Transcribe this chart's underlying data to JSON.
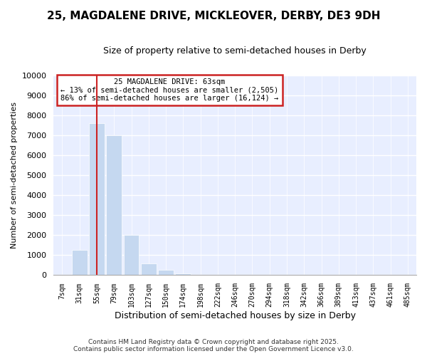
{
  "title_line1": "25, MAGDALENE DRIVE, MICKLEOVER, DERBY, DE3 9DH",
  "title_line2": "Size of property relative to semi-detached houses in Derby",
  "xlabel": "Distribution of semi-detached houses by size in Derby",
  "ylabel": "Number of semi-detached properties",
  "categories": [
    "7sqm",
    "31sqm",
    "55sqm",
    "79sqm",
    "103sqm",
    "127sqm",
    "150sqm",
    "174sqm",
    "198sqm",
    "222sqm",
    "246sqm",
    "270sqm",
    "294sqm",
    "318sqm",
    "342sqm",
    "366sqm",
    "389sqm",
    "413sqm",
    "437sqm",
    "461sqm",
    "485sqm"
  ],
  "values": [
    0,
    1250,
    7600,
    7000,
    2000,
    580,
    260,
    100,
    30,
    5,
    0,
    0,
    0,
    0,
    0,
    0,
    0,
    0,
    0,
    0,
    0
  ],
  "bar_color": "#c5d8f0",
  "vline_x": 2.0,
  "vline_color": "#cc2222",
  "annotation_title": "25 MAGDALENE DRIVE: 63sqm",
  "annotation_line2": "← 13% of semi-detached houses are smaller (2,505)",
  "annotation_line3": "86% of semi-detached houses are larger (16,124) →",
  "annotation_box_edgecolor": "#cc2222",
  "ylim": [
    0,
    10000
  ],
  "yticks": [
    0,
    1000,
    2000,
    3000,
    4000,
    5000,
    6000,
    7000,
    8000,
    9000,
    10000
  ],
  "footer_line1": "Contains HM Land Registry data © Crown copyright and database right 2025.",
  "footer_line2": "Contains public sector information licensed under the Open Government Licence v3.0.",
  "bg_color": "#ffffff",
  "plot_bg_color": "#e8eeff",
  "grid_color": "#ffffff",
  "title1_fontsize": 11,
  "title2_fontsize": 9
}
